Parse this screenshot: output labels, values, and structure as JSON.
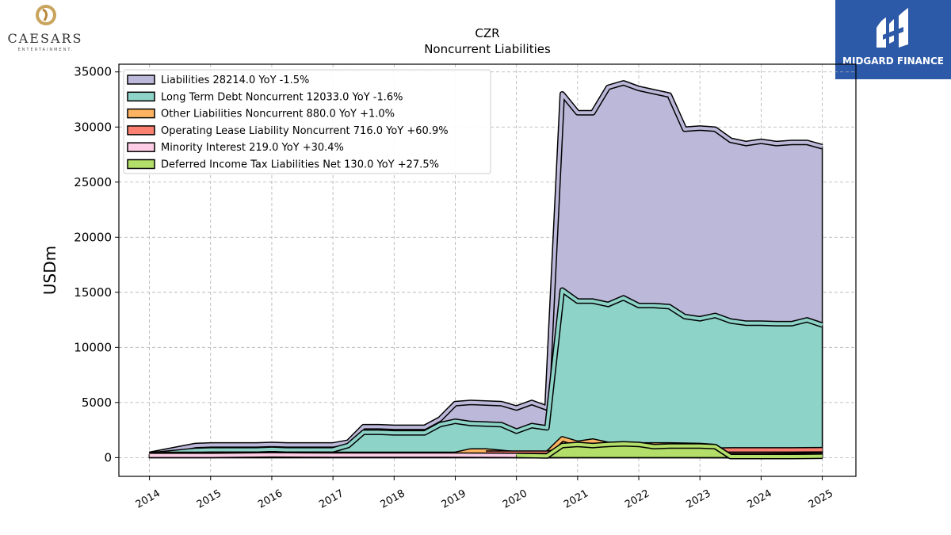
{
  "branding": {
    "company_name": "CAESARS",
    "company_tagline": "ENTERTAINMENT.",
    "publisher": "MIDGARD FINANCE"
  },
  "chart_data": {
    "type": "area",
    "title": "CZR",
    "subtitle": "Noncurrent  Liabilities",
    "ylabel": "USDm",
    "xlabel": "",
    "ylim": [
      -1700,
      35700
    ],
    "xlim": [
      2013.5,
      2025.55
    ],
    "yticks": [
      0,
      5000,
      10000,
      15000,
      20000,
      25000,
      30000,
      35000
    ],
    "xticks": [
      2014,
      2015,
      2016,
      2017,
      2018,
      2019,
      2020,
      2021,
      2022,
      2023,
      2024,
      2025
    ],
    "grid": true,
    "legend_position": "top-left",
    "series": [
      {
        "name": "Liabilities",
        "legend": "Liabilities  28214.0 YoY -1.5%",
        "color": "#bcb8d9",
        "x": [
          2014.0,
          2014.75,
          2015.0,
          2015.25,
          2015.5,
          2015.75,
          2016.0,
          2016.25,
          2016.5,
          2016.75,
          2017.0,
          2017.25,
          2017.5,
          2017.75,
          2018.0,
          2018.25,
          2018.5,
          2018.75,
          2019.0,
          2019.25,
          2019.5,
          2019.75,
          2020.0,
          2020.25,
          2020.5,
          2020.75,
          2021.0,
          2021.25,
          2021.5,
          2021.75,
          2022.0,
          2022.25,
          2022.5,
          2022.75,
          2023.0,
          2023.25,
          2023.5,
          2023.75,
          2024.0,
          2024.25,
          2024.5,
          2024.75,
          2025.0
        ],
        "y": [
          300,
          1100,
          1150,
          1150,
          1150,
          1150,
          1200,
          1150,
          1150,
          1150,
          1150,
          1400,
          2800,
          2800,
          2750,
          2750,
          2750,
          3500,
          4900,
          5000,
          4950,
          4900,
          4500,
          5000,
          4500,
          33000,
          31300,
          31300,
          33600,
          34000,
          33500,
          33200,
          32900,
          29800,
          29900,
          29800,
          28800,
          28500,
          28700,
          28500,
          28600,
          28600,
          28214
        ]
      },
      {
        "name": "Long Term Debt Noncurrent",
        "legend": "Long Term Debt Noncurrent  12033.0 YoY -1.6%",
        "color": "#8dd3c7",
        "x": [
          2014.0,
          2014.75,
          2015.0,
          2015.25,
          2015.5,
          2015.75,
          2016.0,
          2016.25,
          2016.5,
          2016.75,
          2017.0,
          2017.25,
          2017.5,
          2017.75,
          2018.0,
          2018.25,
          2018.5,
          2018.75,
          2019.0,
          2019.25,
          2019.5,
          2019.75,
          2020.0,
          2020.25,
          2020.5,
          2020.75,
          2021.0,
          2021.25,
          2021.5,
          2021.75,
          2022.0,
          2022.25,
          2022.5,
          2022.75,
          2023.0,
          2023.25,
          2023.5,
          2023.75,
          2024.0,
          2024.25,
          2024.5,
          2024.75,
          2025.0
        ],
        "y": [
          250,
          650,
          700,
          700,
          700,
          700,
          750,
          700,
          700,
          700,
          700,
          1100,
          2300,
          2300,
          2250,
          2250,
          2250,
          3000,
          3300,
          3100,
          3050,
          3000,
          2400,
          2900,
          2700,
          15200,
          14200,
          14200,
          13900,
          14500,
          13800,
          13800,
          13700,
          12800,
          12600,
          12900,
          12400,
          12200,
          12200,
          12150,
          12150,
          12500,
          12033
        ]
      },
      {
        "name": "Other Liabilities Noncurrent",
        "legend": "Other Liabilities Noncurrent  880.0 YoY +1.0%",
        "color": "#fdb462",
        "x": [
          2014.0,
          2015.0,
          2019.0,
          2019.25,
          2019.5,
          2020.0,
          2020.5,
          2020.75,
          2021.0,
          2021.25,
          2021.5,
          2022.0,
          2022.5,
          2023.0,
          2023.25
        ],
        "y": [
          300,
          300,
          300,
          600,
          600,
          350,
          350,
          1700,
          1300,
          1500,
          1200,
          1150,
          1150,
          1100,
          1000
        ]
      },
      {
        "name": "Operating Lease Liability Noncurrent",
        "legend": "Operating Lease Liability Noncurrent  716.0 YoY +60.9%",
        "color": "#fb8072",
        "x": [
          2019.5,
          2020.0,
          2020.5,
          2020.75,
          2021.0,
          2021.5,
          2022.0,
          2022.5,
          2023.0,
          2023.5,
          2024.0,
          2024.5,
          2025.0
        ],
        "y": [
          400,
          400,
          400,
          650,
          750,
          750,
          800,
          650,
          650,
          700,
          700,
          700,
          716
        ]
      },
      {
        "name": "Minority Interest",
        "legend": "Minority Interest  219.0 YoY +30.4%",
        "color": "#fccde5",
        "x": [
          2014.0,
          2015.0,
          2016.0,
          2017.0,
          2018.0,
          2019.0,
          2020.0,
          2020.5,
          2020.75,
          2021.0,
          2021.5,
          2022.0,
          2022.5,
          2023.0,
          2023.5,
          2024.0,
          2024.5,
          2025.0
        ],
        "y": [
          200,
          200,
          250,
          220,
          220,
          220,
          200,
          180,
          200,
          250,
          250,
          250,
          220,
          200,
          170,
          170,
          200,
          219
        ]
      },
      {
        "name": "Deferred Income Tax Liabilities Net",
        "legend": "Deferred Income Tax Liabilities Net  130.0 YoY +27.5%",
        "color": "#b3de69",
        "x": [
          2020.0,
          2020.5,
          2020.75,
          2021.0,
          2021.25,
          2021.5,
          2021.75,
          2022.0,
          2022.25,
          2022.5,
          2023.0,
          2023.25,
          2023.5,
          2024.0,
          2024.5,
          2025.0
        ],
        "y": [
          200,
          150,
          1100,
          1200,
          1100,
          1200,
          1250,
          1200,
          1000,
          1050,
          1050,
          1000,
          100,
          100,
          100,
          130
        ]
      }
    ]
  }
}
